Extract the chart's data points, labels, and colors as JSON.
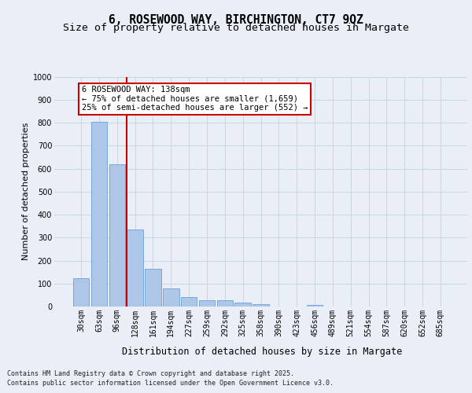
{
  "title": "6, ROSEWOOD WAY, BIRCHINGTON, CT7 9QZ",
  "subtitle": "Size of property relative to detached houses in Margate",
  "xlabel": "Distribution of detached houses by size in Margate",
  "ylabel": "Number of detached properties",
  "footer_line1": "Contains HM Land Registry data © Crown copyright and database right 2025.",
  "footer_line2": "Contains public sector information licensed under the Open Government Licence v3.0.",
  "bar_labels": [
    "30sqm",
    "63sqm",
    "96sqm",
    "128sqm",
    "161sqm",
    "194sqm",
    "227sqm",
    "259sqm",
    "292sqm",
    "325sqm",
    "358sqm",
    "390sqm",
    "423sqm",
    "456sqm",
    "489sqm",
    "521sqm",
    "554sqm",
    "587sqm",
    "620sqm",
    "652sqm",
    "685sqm"
  ],
  "bar_values": [
    123,
    805,
    620,
    335,
    163,
    80,
    40,
    28,
    26,
    16,
    10,
    1,
    0,
    8,
    0,
    0,
    0,
    0,
    0,
    0,
    0
  ],
  "bar_color": "#aec6e8",
  "bar_edgecolor": "#6a9fd8",
  "vline_index": 3,
  "vline_color": "#cc0000",
  "annotation_text": "6 ROSEWOOD WAY: 138sqm\n← 75% of detached houses are smaller (1,659)\n25% of semi-detached houses are larger (552) →",
  "annotation_box_edgecolor": "#cc0000",
  "annotation_box_facecolor": "#ffffff",
  "ylim": [
    0,
    1000
  ],
  "yticks": [
    0,
    100,
    200,
    300,
    400,
    500,
    600,
    700,
    800,
    900,
    1000
  ],
  "grid_color": "#cdd5e3",
  "bg_color": "#eaeff7",
  "title_fontsize": 10.5,
  "subtitle_fontsize": 9.5,
  "ylabel_fontsize": 8,
  "xlabel_fontsize": 8.5,
  "tick_fontsize": 7,
  "annotation_fontsize": 7.5,
  "footer_fontsize": 6.0
}
